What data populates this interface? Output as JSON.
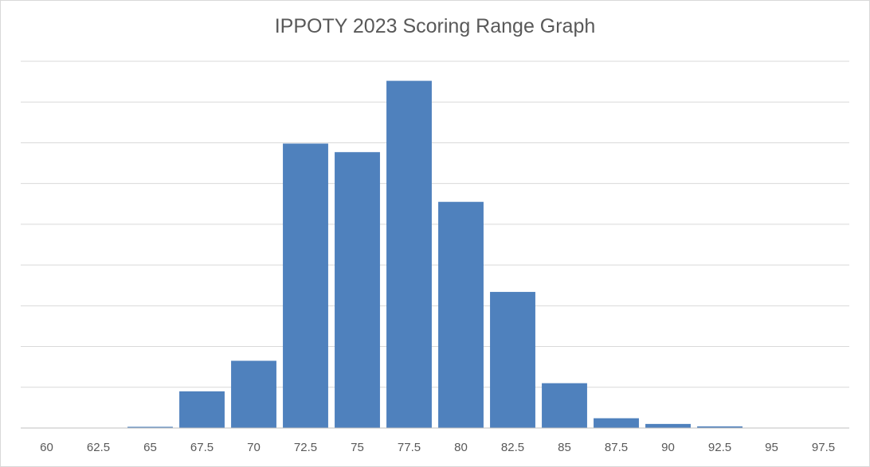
{
  "chart_data": {
    "type": "bar",
    "title": "IPPOTY 2023 Scoring Range Graph",
    "xlabel": "",
    "ylabel": "",
    "categories": [
      "60",
      "62.5",
      "65",
      "67.5",
      "70",
      "72.5",
      "75",
      "77.5",
      "80",
      "82.5",
      "85",
      "87.5",
      "90",
      "92.5",
      "95",
      "97.5"
    ],
    "values": [
      0,
      0,
      0.3,
      9,
      16.5,
      69.8,
      67.7,
      85.2,
      55.5,
      33.4,
      11,
      2.4,
      1,
      0.4,
      0,
      0
    ],
    "ylim": [
      0,
      90
    ],
    "ytick_step": 10,
    "y_tick_labels_shown": false,
    "grid": true,
    "legend": "none",
    "colors": {
      "bar": "#4f81bd",
      "grid": "#d9d9d9",
      "axis": "#bfbfbf",
      "text": "#595959"
    }
  }
}
